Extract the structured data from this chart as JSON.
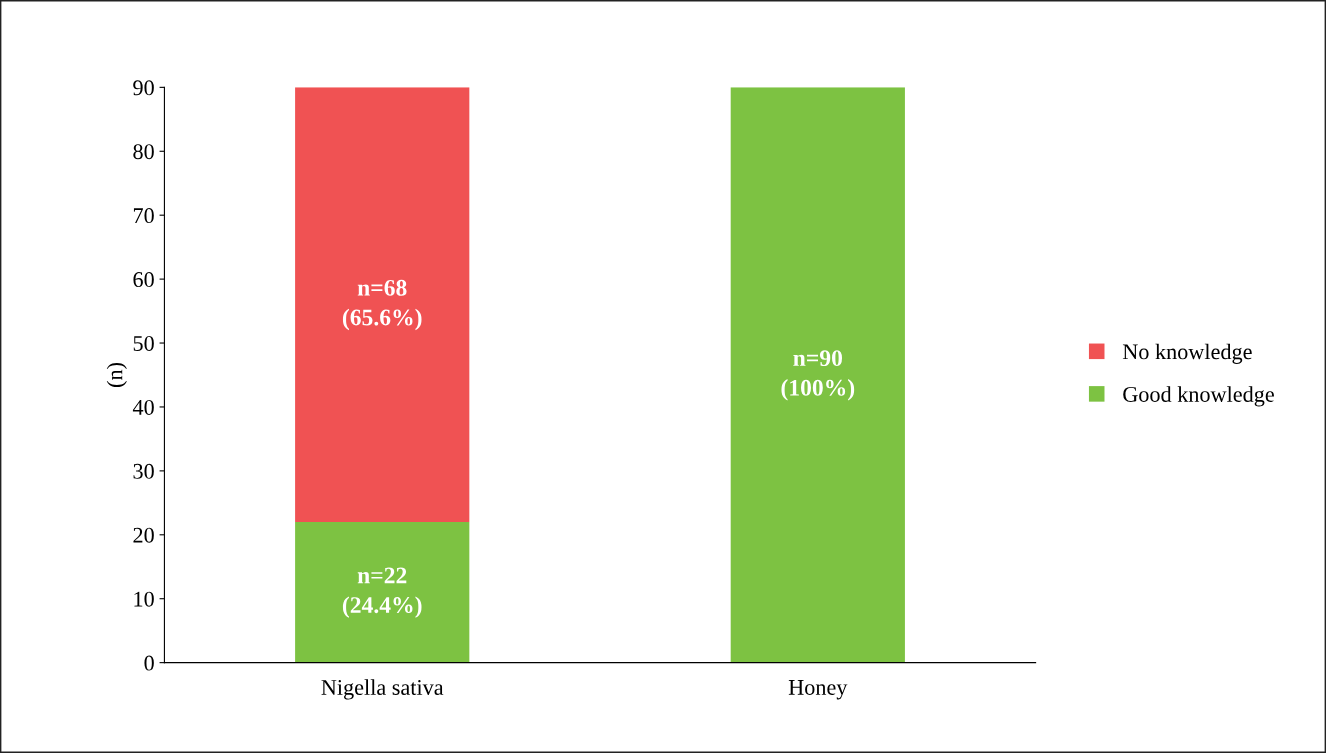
{
  "chart_data": {
    "type": "bar",
    "stacked": true,
    "ylabel": "(n)",
    "categories": [
      "Nigella sativa",
      "Honey"
    ],
    "series": [
      {
        "name": "Good knowledge",
        "color": "#7dc242",
        "values": [
          22,
          90
        ],
        "value_labels": [
          "n=22\n(24.4%)",
          "n=90\n(100%)"
        ]
      },
      {
        "name": "No knowledge",
        "color": "#f05253",
        "values": [
          68,
          0
        ],
        "value_labels": [
          "n=68\n(65.6%)",
          null
        ]
      }
    ],
    "ylim": [
      0,
      90
    ],
    "yticks": [
      0,
      10,
      20,
      30,
      40,
      50,
      60,
      70,
      80,
      90
    ],
    "grid": false,
    "legend": "right"
  }
}
